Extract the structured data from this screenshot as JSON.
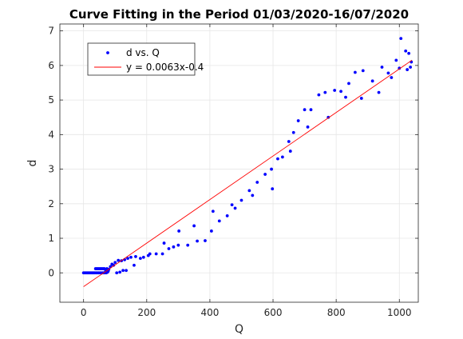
{
  "chart_data": {
    "type": "scatter",
    "title": "Curve Fitting in the Period 01/03/2020-16/07/2020",
    "xlabel": "Q",
    "ylabel": "d",
    "xlim": [
      -75,
      1060
    ],
    "ylim": [
      -0.85,
      7.2
    ],
    "xticks": [
      "0",
      "200",
      "400",
      "600",
      "800",
      "1000"
    ],
    "xtick_values": [
      0,
      200,
      400,
      600,
      800,
      1000
    ],
    "yticks": [
      "0",
      "1",
      "2",
      "3",
      "4",
      "5",
      "6",
      "7"
    ],
    "ytick_values": [
      0,
      1,
      2,
      3,
      4,
      5,
      6,
      7
    ],
    "grid": true,
    "legend_position": "top-left",
    "series": [
      {
        "name": "d vs. Q",
        "kind": "points",
        "color": "#0000ff",
        "points": [
          [
            0,
            0
          ],
          [
            3,
            0
          ],
          [
            6,
            0
          ],
          [
            9,
            0
          ],
          [
            12,
            0
          ],
          [
            15,
            0
          ],
          [
            18,
            0
          ],
          [
            21,
            0
          ],
          [
            24,
            0
          ],
          [
            27,
            0
          ],
          [
            30,
            0
          ],
          [
            33,
            0
          ],
          [
            36,
            0
          ],
          [
            38,
            0.12
          ],
          [
            40,
            0
          ],
          [
            42,
            0.12
          ],
          [
            44,
            0
          ],
          [
            46,
            0.12
          ],
          [
            48,
            0
          ],
          [
            50,
            0.12
          ],
          [
            52,
            0
          ],
          [
            54,
            0.12
          ],
          [
            56,
            0
          ],
          [
            58,
            0.12
          ],
          [
            60,
            0
          ],
          [
            62,
            0.12
          ],
          [
            64,
            0
          ],
          [
            66,
            0.12
          ],
          [
            68,
            0
          ],
          [
            70,
            0.05
          ],
          [
            72,
            0
          ],
          [
            74,
            0.12
          ],
          [
            76,
            0.02
          ],
          [
            78,
            0.05
          ],
          [
            80,
            0.1
          ],
          [
            85,
            0.18
          ],
          [
            90,
            0.25
          ],
          [
            95,
            0.22
          ],
          [
            100,
            0.3
          ],
          [
            105,
            0
          ],
          [
            110,
            0.36
          ],
          [
            115,
            0.02
          ],
          [
            120,
            0.35
          ],
          [
            125,
            0.07
          ],
          [
            130,
            0.38
          ],
          [
            135,
            0.07
          ],
          [
            140,
            0.42
          ],
          [
            150,
            0.45
          ],
          [
            160,
            0.22
          ],
          [
            165,
            0.47
          ],
          [
            180,
            0.42
          ],
          [
            190,
            0.45
          ],
          [
            205,
            0.5
          ],
          [
            210,
            0.55
          ],
          [
            230,
            0.55
          ],
          [
            250,
            0.55
          ],
          [
            255,
            0.86
          ],
          [
            270,
            0.7
          ],
          [
            285,
            0.75
          ],
          [
            300,
            0.8
          ],
          [
            302,
            1.21
          ],
          [
            330,
            0.8
          ],
          [
            350,
            1.36
          ],
          [
            360,
            0.92
          ],
          [
            385,
            0.93
          ],
          [
            405,
            1.21
          ],
          [
            410,
            1.78
          ],
          [
            430,
            1.5
          ],
          [
            455,
            1.65
          ],
          [
            470,
            1.97
          ],
          [
            480,
            1.87
          ],
          [
            500,
            2.1
          ],
          [
            525,
            2.38
          ],
          [
            535,
            2.24
          ],
          [
            550,
            2.62
          ],
          [
            575,
            2.85
          ],
          [
            595,
            3.0
          ],
          [
            598,
            2.43
          ],
          [
            615,
            3.3
          ],
          [
            630,
            3.35
          ],
          [
            650,
            3.8
          ],
          [
            655,
            3.52
          ],
          [
            665,
            4.06
          ],
          [
            680,
            4.4
          ],
          [
            700,
            4.72
          ],
          [
            710,
            4.22
          ],
          [
            720,
            4.72
          ],
          [
            745,
            5.15
          ],
          [
            765,
            5.22
          ],
          [
            775,
            4.5
          ],
          [
            795,
            5.28
          ],
          [
            815,
            5.25
          ],
          [
            830,
            5.08
          ],
          [
            840,
            5.48
          ],
          [
            860,
            5.8
          ],
          [
            880,
            5.05
          ],
          [
            885,
            5.85
          ],
          [
            915,
            5.55
          ],
          [
            935,
            5.22
          ],
          [
            945,
            5.95
          ],
          [
            965,
            5.78
          ],
          [
            975,
            5.65
          ],
          [
            990,
            6.15
          ],
          [
            1000,
            5.92
          ],
          [
            1005,
            6.78
          ],
          [
            1020,
            6.42
          ],
          [
            1025,
            5.88
          ],
          [
            1030,
            6.35
          ],
          [
            1035,
            5.95
          ],
          [
            1038,
            6.1
          ]
        ]
      },
      {
        "name": "y = 0.0063x-0.4",
        "kind": "line",
        "color": "#ff0000",
        "x": [
          0,
          1040
        ],
        "y": [
          -0.4,
          6.152
        ]
      }
    ]
  }
}
